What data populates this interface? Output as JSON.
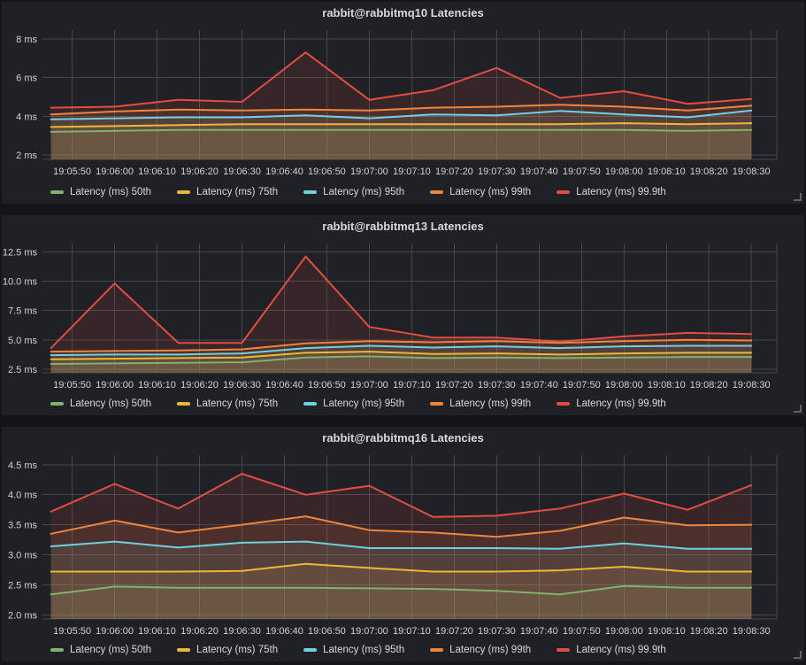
{
  "theme": {
    "page_background": "#141519",
    "panel_background": "#202126",
    "grid_color": "#45474c",
    "text_color": "#d8d9da"
  },
  "chart_data": [
    {
      "type": "area",
      "title": "rabbit@rabbitmq10 Latencies",
      "grid": true,
      "legend_position": "bottom",
      "unit": "ms",
      "xlim": [
        "19:05:43",
        "19:08:36"
      ],
      "x_ticks": [
        "19:05:50",
        "19:06:00",
        "19:06:10",
        "19:06:20",
        "19:06:30",
        "19:06:40",
        "19:06:50",
        "19:07:00",
        "19:07:10",
        "19:07:20",
        "19:07:30",
        "19:07:40",
        "19:07:50",
        "19:08:00",
        "19:08:10",
        "19:08:20",
        "19:08:30"
      ],
      "ylim": [
        1.78,
        8.45
      ],
      "y_ticks": [
        2,
        4,
        6,
        8
      ],
      "y_tick_labels": [
        "2 ms",
        "4 ms",
        "6 ms",
        "8 ms"
      ],
      "x": [
        "19:05:45",
        "19:06:00",
        "19:06:15",
        "19:06:30",
        "19:06:45",
        "19:07:00",
        "19:07:15",
        "19:07:30",
        "19:07:45",
        "19:08:00",
        "19:08:15",
        "19:08:30"
      ],
      "series": [
        {
          "name": "Latency (ms) 50th",
          "color": "#7EB26D",
          "values": [
            3.2,
            3.25,
            3.3,
            3.3,
            3.3,
            3.3,
            3.3,
            3.3,
            3.3,
            3.3,
            3.25,
            3.3
          ]
        },
        {
          "name": "Latency (ms) 75th",
          "color": "#EAB839",
          "values": [
            3.45,
            3.5,
            3.55,
            3.6,
            3.6,
            3.6,
            3.6,
            3.6,
            3.6,
            3.65,
            3.6,
            3.65
          ]
        },
        {
          "name": "Latency (ms) 95th",
          "color": "#6ED0E0",
          "values": [
            3.85,
            3.9,
            3.95,
            3.95,
            4.05,
            3.9,
            4.1,
            4.05,
            4.28,
            4.1,
            3.95,
            4.3
          ]
        },
        {
          "name": "Latency (ms) 99th",
          "color": "#EF843C",
          "values": [
            4.1,
            4.25,
            4.35,
            4.3,
            4.35,
            4.3,
            4.45,
            4.5,
            4.6,
            4.5,
            4.3,
            4.55
          ]
        },
        {
          "name": "Latency (ms) 99.9th",
          "color": "#E24D42",
          "values": [
            4.45,
            4.5,
            4.85,
            4.75,
            7.3,
            4.85,
            5.35,
            6.5,
            4.95,
            5.3,
            4.65,
            4.9
          ]
        }
      ]
    },
    {
      "type": "area",
      "title": "rabbit@rabbitmq13 Latencies",
      "grid": true,
      "legend_position": "bottom",
      "unit": "ms",
      "xlim": [
        "19:05:43",
        "19:08:36"
      ],
      "x_ticks": [
        "19:05:50",
        "19:06:00",
        "19:06:10",
        "19:06:20",
        "19:06:30",
        "19:06:40",
        "19:06:50",
        "19:07:00",
        "19:07:10",
        "19:07:20",
        "19:07:30",
        "19:07:40",
        "19:07:50",
        "19:08:00",
        "19:08:10",
        "19:08:20",
        "19:08:30"
      ],
      "ylim": [
        2.2,
        13.2
      ],
      "y_ticks": [
        2.5,
        5,
        7.5,
        10,
        12.5
      ],
      "y_tick_labels": [
        "2.5 ms",
        "5.0 ms",
        "7.5 ms",
        "10.0 ms",
        "12.5 ms"
      ],
      "x": [
        "19:05:45",
        "19:06:00",
        "19:06:15",
        "19:06:30",
        "19:06:45",
        "19:07:00",
        "19:07:15",
        "19:07:30",
        "19:07:45",
        "19:08:00",
        "19:08:15",
        "19:08:30"
      ],
      "series": [
        {
          "name": "Latency (ms) 50th",
          "color": "#7EB26D",
          "values": [
            2.95,
            3.0,
            3.05,
            3.1,
            3.5,
            3.6,
            3.45,
            3.5,
            3.45,
            3.5,
            3.55,
            3.55
          ]
        },
        {
          "name": "Latency (ms) 75th",
          "color": "#EAB839",
          "values": [
            3.35,
            3.4,
            3.45,
            3.5,
            3.9,
            4.0,
            3.8,
            3.85,
            3.75,
            3.85,
            3.9,
            3.9
          ]
        },
        {
          "name": "Latency (ms) 95th",
          "color": "#6ED0E0",
          "values": [
            3.7,
            3.75,
            3.75,
            3.85,
            4.3,
            4.5,
            4.35,
            4.45,
            4.3,
            4.45,
            4.5,
            4.5
          ]
        },
        {
          "name": "Latency (ms) 99th",
          "color": "#EF843C",
          "values": [
            4.0,
            4.05,
            4.1,
            4.2,
            4.7,
            4.9,
            4.8,
            4.9,
            4.75,
            4.9,
            5.0,
            4.95
          ]
        },
        {
          "name": "Latency (ms) 99.9th",
          "color": "#E24D42",
          "values": [
            4.3,
            9.8,
            4.75,
            4.75,
            12.1,
            6.1,
            5.2,
            5.2,
            4.85,
            5.3,
            5.6,
            5.5
          ]
        }
      ]
    },
    {
      "type": "area",
      "title": "rabbit@rabbitmq16 Latencies",
      "grid": true,
      "legend_position": "bottom",
      "unit": "ms",
      "xlim": [
        "19:05:43",
        "19:08:36"
      ],
      "x_ticks": [
        "19:05:50",
        "19:06:00",
        "19:06:10",
        "19:06:20",
        "19:06:30",
        "19:06:40",
        "19:06:50",
        "19:07:00",
        "19:07:10",
        "19:07:20",
        "19:07:30",
        "19:07:40",
        "19:07:50",
        "19:08:00",
        "19:08:10",
        "19:08:20",
        "19:08:30"
      ],
      "ylim": [
        1.93,
        4.66
      ],
      "y_ticks": [
        2,
        2.5,
        3,
        3.5,
        4,
        4.5
      ],
      "y_tick_labels": [
        "2.0 ms",
        "2.5 ms",
        "3.0 ms",
        "3.5 ms",
        "4.0 ms",
        "4.5 ms"
      ],
      "x": [
        "19:05:45",
        "19:06:00",
        "19:06:15",
        "19:06:30",
        "19:06:45",
        "19:07:00",
        "19:07:15",
        "19:07:30",
        "19:07:45",
        "19:08:00",
        "19:08:15",
        "19:08:30"
      ],
      "series": [
        {
          "name": "Latency (ms) 50th",
          "color": "#7EB26D",
          "values": [
            2.34,
            2.47,
            2.45,
            2.45,
            2.45,
            2.44,
            2.43,
            2.4,
            2.34,
            2.48,
            2.45,
            2.45
          ]
        },
        {
          "name": "Latency (ms) 75th",
          "color": "#EAB839",
          "values": [
            2.72,
            2.72,
            2.72,
            2.73,
            2.85,
            2.78,
            2.72,
            2.72,
            2.74,
            2.8,
            2.72,
            2.72
          ]
        },
        {
          "name": "Latency (ms) 95th",
          "color": "#6ED0E0",
          "values": [
            3.14,
            3.22,
            3.12,
            3.2,
            3.22,
            3.11,
            3.11,
            3.11,
            3.1,
            3.19,
            3.1,
            3.1
          ]
        },
        {
          "name": "Latency (ms) 99th",
          "color": "#EF843C",
          "values": [
            3.35,
            3.57,
            3.37,
            3.5,
            3.64,
            3.41,
            3.37,
            3.3,
            3.4,
            3.62,
            3.49,
            3.5
          ]
        },
        {
          "name": "Latency (ms) 99.9th",
          "color": "#E24D42",
          "values": [
            3.72,
            4.18,
            3.77,
            4.35,
            4.0,
            4.15,
            3.63,
            3.65,
            3.77,
            4.02,
            3.75,
            4.16
          ]
        }
      ]
    }
  ]
}
